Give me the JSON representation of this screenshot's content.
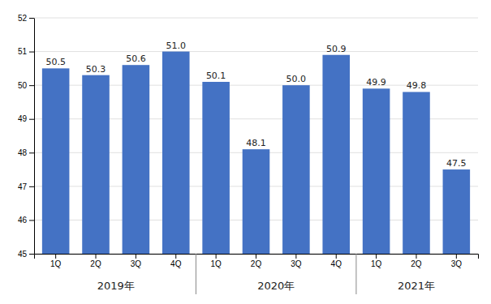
{
  "chart_data": {
    "type": "bar",
    "categories": [
      "1Q",
      "2Q",
      "3Q",
      "4Q",
      "1Q",
      "2Q",
      "3Q",
      "4Q",
      "1Q",
      "2Q",
      "3Q"
    ],
    "values": [
      50.5,
      50.3,
      50.6,
      51.0,
      50.1,
      48.1,
      50.0,
      50.9,
      49.9,
      49.8,
      47.5
    ],
    "value_labels": [
      "50.5",
      "50.3",
      "50.6",
      "51.0",
      "50.1",
      "48.1",
      "50.0",
      "50.9",
      "49.9",
      "49.8",
      "47.5"
    ],
    "color": "#4472C4",
    "ylim": [
      45,
      52
    ],
    "yticks": [
      45,
      46,
      47,
      48,
      49,
      50,
      51,
      52
    ],
    "grid": true,
    "data_labels": true,
    "annotations": [
      {
        "text": "2019年",
        "start": 0,
        "end": 3
      },
      {
        "text": "2020年",
        "start": 4,
        "end": 7
      },
      {
        "text": "2021年",
        "start": 8,
        "end": 10
      }
    ]
  }
}
